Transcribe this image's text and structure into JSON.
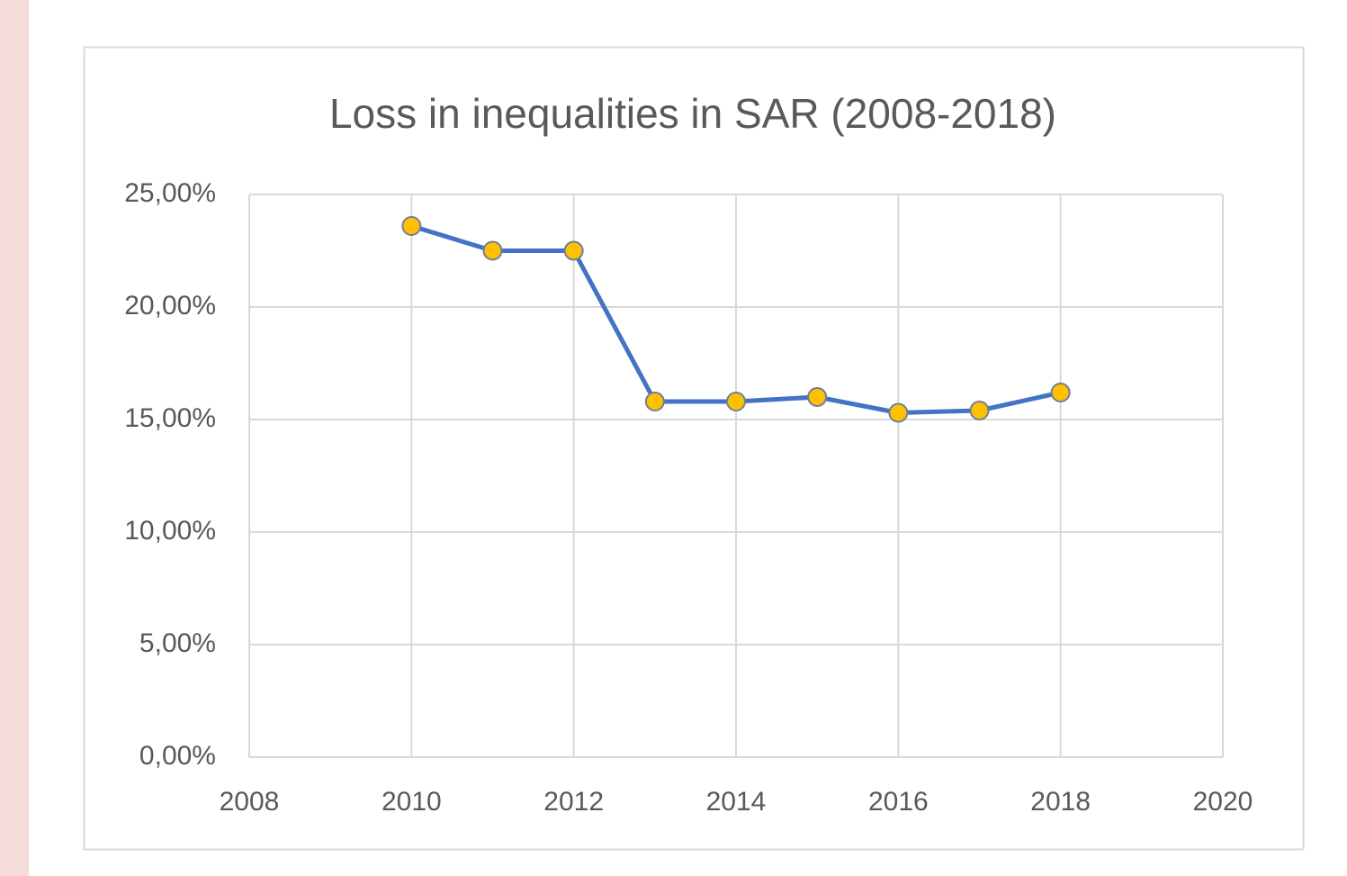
{
  "chart_data": {
    "type": "line",
    "title": "Loss in inequalities in SAR (2008-2018)",
    "x": [
      2010,
      2011,
      2012,
      2013,
      2014,
      2015,
      2016,
      2017,
      2018
    ],
    "series": [
      {
        "color": "#4472c4",
        "marker_color": "#ffc000",
        "values": [
          23.6,
          22.5,
          22.5,
          15.8,
          15.8,
          16.0,
          15.3,
          15.4,
          16.2
        ]
      }
    ],
    "xlim": [
      2008,
      2020
    ],
    "xticks": [
      2008,
      2010,
      2012,
      2014,
      2016,
      2018,
      2020
    ],
    "ylim": [
      0,
      25
    ],
    "yticks": [
      {
        "value": 0,
        "label": "0,00%"
      },
      {
        "value": 5,
        "label": "5,00%"
      },
      {
        "value": 10,
        "label": "10,00%"
      },
      {
        "value": 15,
        "label": "15,00%"
      },
      {
        "value": 20,
        "label": "20,00%"
      },
      {
        "value": 25,
        "label": "25,00%"
      }
    ],
    "grid": true
  }
}
